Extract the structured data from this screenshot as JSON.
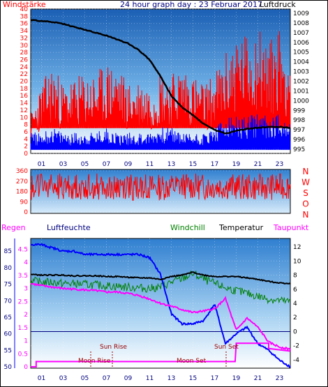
{
  "title": "24 hour graph day : 23 Februar 2017",
  "colors": {
    "red": "#ff0000",
    "blue": "#0000ff",
    "green": "#008000",
    "black": "#000000",
    "magenta": "#ff00ff",
    "navy": "#000080",
    "darkred": "#990000"
  },
  "chart_data": [
    {
      "type": "line",
      "title": "24 hour graph day : 23 Februar 2017",
      "x_tick_labels": [
        "01",
        "03",
        "05",
        "07",
        "09",
        "11",
        "13",
        "15",
        "17",
        "19",
        "21",
        "23"
      ],
      "left_axis": {
        "label": "Windstärke",
        "ticks": [
          "0",
          "2",
          "4",
          "6",
          "8",
          "10",
          "12",
          "14",
          "16",
          "18",
          "20",
          "22",
          "24",
          "26",
          "28",
          "30",
          "32",
          "34",
          "36",
          "38",
          "40"
        ],
        "range": [
          0,
          40
        ]
      },
      "right_axis": {
        "label": "Luftdruck",
        "ticks": [
          "995",
          "996",
          "997",
          "998",
          "999",
          "1000",
          "1001",
          "1002",
          "1003",
          "1004",
          "1005",
          "1006",
          "1007",
          "1008",
          "1009"
        ],
        "range": [
          995,
          1009
        ]
      },
      "series": [
        {
          "name": "Luftdruck",
          "color": "#000000",
          "axis": "right",
          "hours": [
            0,
            1,
            2,
            3,
            4,
            5,
            6,
            7,
            8,
            9,
            10,
            11,
            12,
            13,
            14,
            15,
            16,
            17,
            18,
            19,
            20,
            21,
            22,
            23,
            24
          ],
          "values": [
            1008.3,
            1008.2,
            1008.1,
            1007.9,
            1007.6,
            1007.3,
            1007.0,
            1006.7,
            1006.3,
            1005.9,
            1005.2,
            1004.2,
            1002.5,
            1000.5,
            999.3,
            998.5,
            997.6,
            997.0,
            996.6,
            996.9,
            997.1,
            997.2,
            997.3,
            997.3,
            997.2
          ]
        },
        {
          "name": "Wind gust",
          "color": "#ff0000",
          "axis": "left",
          "hours": [
            0,
            1,
            2,
            3,
            4,
            5,
            6,
            7,
            8,
            9,
            10,
            11,
            12,
            13,
            14,
            15,
            16,
            17,
            18,
            19,
            20,
            21,
            22,
            23,
            24
          ],
          "values": [
            8,
            14,
            18,
            14,
            15,
            16,
            16,
            18,
            18,
            14,
            15,
            14,
            17,
            16,
            18,
            16,
            14,
            16,
            20,
            24,
            24,
            26,
            22,
            26,
            20
          ]
        },
        {
          "name": "Wind average",
          "color": "#0000ff",
          "axis": "left",
          "hours": [
            0,
            1,
            2,
            3,
            4,
            5,
            6,
            7,
            8,
            9,
            10,
            11,
            12,
            13,
            14,
            15,
            16,
            17,
            18,
            19,
            20,
            21,
            22,
            23,
            24
          ],
          "values": [
            4,
            4,
            5,
            4,
            4,
            4,
            4,
            5,
            4,
            4,
            4,
            4,
            5,
            5,
            4,
            4,
            4,
            5,
            7,
            7,
            7,
            8,
            7,
            8,
            6
          ]
        }
      ]
    },
    {
      "type": "line",
      "title": "",
      "x_tick_labels": [],
      "left_axis": {
        "ticks": [
          "0",
          "90",
          "180",
          "270",
          "360"
        ],
        "range": [
          0,
          360
        ]
      },
      "right_labels": [
        "N",
        "W",
        "S",
        "O",
        "N"
      ],
      "series": [
        {
          "name": "Windrichtung",
          "color": "#ff0000",
          "hours": [
            0,
            2,
            4,
            6,
            8,
            10,
            12,
            14,
            16,
            18,
            20,
            22,
            24
          ],
          "values": [
            220,
            230,
            215,
            225,
            210,
            220,
            215,
            230,
            220,
            225,
            215,
            220,
            225
          ]
        }
      ]
    },
    {
      "type": "line",
      "title": "",
      "x_tick_labels": [
        "01",
        "03",
        "05",
        "07",
        "09",
        "11",
        "13",
        "15",
        "17",
        "19",
        "21",
        "23"
      ],
      "left_axis_regen": {
        "label": "Regen",
        "ticks": [
          "0",
          "0.5",
          "1",
          "1.5",
          "2",
          "2.5",
          "3",
          "3.5",
          "4",
          "4.5"
        ]
      },
      "left_axis_humidity": {
        "label": "Luftfeuchte",
        "ticks": [
          "50",
          "55",
          "60",
          "65",
          "70",
          "75",
          "80",
          "85"
        ]
      },
      "right_axis": {
        "label": "Temperatur",
        "ticks": [
          "-4",
          "-2",
          "0",
          "2",
          "4",
          "6",
          "8",
          "10",
          "12"
        ],
        "range": [
          -5,
          13
        ]
      },
      "labels": {
        "windchill": "Windchill",
        "temperatur": "Temperatur",
        "taupunkt": "Taupunkt"
      },
      "annotations": [
        "Sun Rise",
        "Sun Set",
        "Moon Rise",
        "Moon Set"
      ],
      "series": [
        {
          "name": "Temperatur",
          "color": "#000000",
          "hours": [
            0,
            1,
            2,
            3,
            4,
            5,
            6,
            7,
            8,
            9,
            10,
            11,
            12,
            13,
            14,
            15,
            16,
            17,
            18,
            19,
            20,
            21,
            22,
            23,
            24
          ],
          "values": [
            8.1,
            8.0,
            8.0,
            8.0,
            7.9,
            7.9,
            7.9,
            7.8,
            7.8,
            7.7,
            7.6,
            7.6,
            7.4,
            7.8,
            8.0,
            8.4,
            8.0,
            7.8,
            7.8,
            7.8,
            7.6,
            7.4,
            7.1,
            6.9,
            6.8
          ]
        },
        {
          "name": "Windchill",
          "color": "#008000",
          "hours": [
            0,
            1,
            2,
            3,
            4,
            5,
            6,
            7,
            8,
            9,
            10,
            11,
            12,
            13,
            14,
            15,
            16,
            17,
            18,
            19,
            20,
            21,
            22,
            23,
            24
          ],
          "values": [
            7.2,
            7.0,
            7.0,
            6.8,
            6.8,
            6.7,
            6.6,
            6.5,
            6.4,
            6.3,
            6.2,
            6.1,
            6.3,
            7.0,
            7.5,
            8.2,
            7.4,
            6.8,
            6.2,
            5.8,
            5.4,
            5.0,
            4.6,
            4.4,
            4.2
          ]
        },
        {
          "name": "Taupunkt",
          "color": "#ff00ff",
          "hours": [
            0,
            1,
            2,
            3,
            4,
            5,
            6,
            7,
            8,
            9,
            10,
            11,
            12,
            13,
            14,
            15,
            16,
            17,
            18,
            19,
            20,
            21,
            22,
            23,
            24
          ],
          "values": [
            6.8,
            6.5,
            6.3,
            6.1,
            6.0,
            5.9,
            5.8,
            5.6,
            5.6,
            5.4,
            5.1,
            4.6,
            4.0,
            3.6,
            3.1,
            2.7,
            2.9,
            3.2,
            4.7,
            0.2,
            1.9,
            0.6,
            -1.5,
            -2.2,
            -2.5
          ]
        },
        {
          "name": "Luftfeuchte",
          "color": "#0000ff",
          "hours": [
            0,
            1,
            2,
            3,
            4,
            5,
            6,
            7,
            8,
            9,
            10,
            11,
            12,
            13,
            14,
            15,
            16,
            17,
            18,
            19,
            20,
            21,
            22,
            23,
            24
          ],
          "values": [
            87,
            87,
            86,
            85,
            85,
            84,
            84,
            84,
            84,
            84,
            84,
            83,
            78,
            66,
            63,
            63,
            64,
            69,
            57,
            60,
            62,
            57,
            55,
            52,
            50
          ]
        },
        {
          "name": "Regen",
          "color": "#ff00ff",
          "hours": [
            0,
            0.5,
            0.5,
            1,
            18.9,
            19,
            22,
            22,
            24
          ],
          "values": [
            0,
            0,
            0.2,
            0.2,
            0.2,
            0.9,
            0.9,
            0.7,
            0.6
          ]
        }
      ]
    }
  ]
}
